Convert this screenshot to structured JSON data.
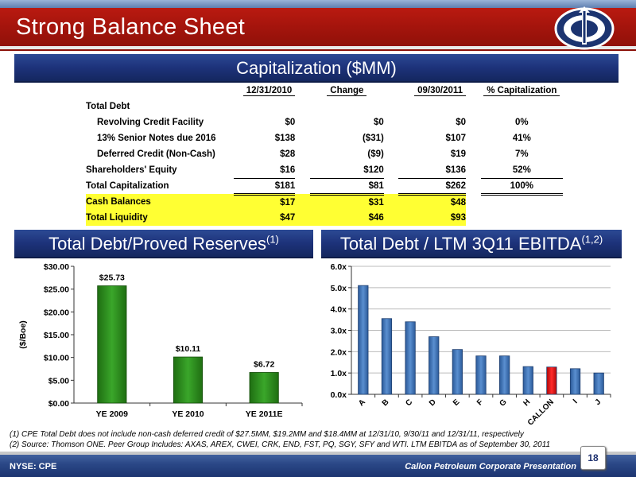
{
  "header": {
    "title": "Strong Balance Sheet"
  },
  "capitalization": {
    "banner": "Capitalization ($MM)",
    "columns": [
      "12/31/2010",
      "Change",
      "09/30/2011",
      "% Capitalization"
    ],
    "rows": [
      {
        "label": "Total Debt",
        "values": [
          "",
          "",
          "",
          ""
        ]
      },
      {
        "label": "Revolving Credit Facility",
        "values": [
          "$0",
          "$0",
          "$0",
          "0%"
        ]
      },
      {
        "label": "13% Senior Notes due 2016",
        "values": [
          "$138",
          "($31)",
          "$107",
          "41%"
        ]
      },
      {
        "label": "Deferred Credit (Non-Cash)",
        "values": [
          "$28",
          "($9)",
          "$19",
          "7%"
        ]
      },
      {
        "label": "Shareholders' Equity",
        "values": [
          "$16",
          "$120",
          "$136",
          "52%"
        ]
      },
      {
        "label": "Total Capitalization",
        "values": [
          "$181",
          "$81",
          "$262",
          "100%"
        ]
      },
      {
        "label": "Cash Balances",
        "values": [
          "$17",
          "$31",
          "$48",
          ""
        ]
      },
      {
        "label": "Total Liquidity",
        "values": [
          "$47",
          "$46",
          "$93",
          ""
        ]
      }
    ]
  },
  "left_banner": {
    "text": "Total Debt/Proved Reserves",
    "sup": "(1)"
  },
  "right_banner": {
    "text": "Total Debt / LTM 3Q11 EBITDA",
    "sup": "(1,2)"
  },
  "chart_data": [
    {
      "type": "bar",
      "title": "Total Debt/Proved Reserves",
      "ylabel": "($/Boe)",
      "categories": [
        "YE 2009",
        "YE 2010",
        "YE 2011E"
      ],
      "values": [
        25.73,
        10.11,
        6.72
      ],
      "data_labels": [
        "$25.73",
        "$10.11",
        "$6.72"
      ],
      "ylim": [
        0,
        30
      ],
      "yticks": [
        "$0.00",
        "$5.00",
        "$10.00",
        "$15.00",
        "$20.00",
        "$25.00",
        "$30.00"
      ],
      "color": "#2e8b1e",
      "grid": false
    },
    {
      "type": "bar",
      "title": "Total Debt / LTM 3Q11 EBITDA",
      "categories": [
        "A",
        "B",
        "C",
        "D",
        "E",
        "F",
        "G",
        "H",
        "CALLON",
        "I",
        "J"
      ],
      "values": [
        5.1,
        3.55,
        3.4,
        2.7,
        2.1,
        1.8,
        1.8,
        1.3,
        1.28,
        1.2,
        1.0
      ],
      "ylim": [
        0,
        6
      ],
      "yticks": [
        "0.0x",
        "1.0x",
        "2.0x",
        "3.0x",
        "4.0x",
        "5.0x",
        "6.0x"
      ],
      "color": "#3a6fb3",
      "highlight": {
        "category": "CALLON",
        "color": "#e01010"
      },
      "grid": true
    }
  ],
  "footnotes": [
    "(1)  CPE Total Debt does not include non-cash deferred credit of $27.5MM, $19.2MM and $18.4MM at 12/31/10, 9/30/11 and  12/31/11, respectively",
    "(2)  Source: Thomson ONE. Peer Group Includes: AXAS, AREX, CWEI, CRK, END, FST, PQ, SGY, SFY and WTI. LTM EBITDA as of September 30, 2011"
  ],
  "footer": {
    "ticker": "NYSE: CPE",
    "company": "Callon Petroleum Corporate Presentation",
    "page": "18"
  }
}
